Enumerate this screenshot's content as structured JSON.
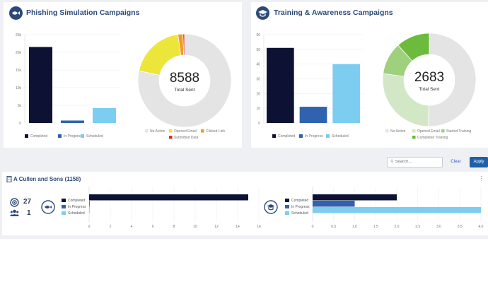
{
  "phishing": {
    "title": "Phishing Simulation Campaigns",
    "bar_legend": [
      "Completed",
      "In Progress",
      "Scheduled"
    ],
    "donut_center": "8588",
    "donut_label": "Total Sent",
    "donut_legend": [
      "No Action",
      "Opened Email",
      "Clicked Link",
      "Submitted Data"
    ]
  },
  "training": {
    "title": "Training & Awareness Campaigns",
    "bar_legend": [
      "Completed",
      "In Progress",
      "Scheduled"
    ],
    "donut_center": "2683",
    "donut_label": "Total Sent",
    "donut_legend": [
      "No Action",
      "Opened Email",
      "Started Training",
      "Completed Training"
    ]
  },
  "toolbar": {
    "search_placeholder": "Search...",
    "clear_label": "Clear",
    "apply_label": "Apply"
  },
  "org": {
    "name": "A Cullen and Sons (1158)",
    "stat_a": "27",
    "stat_b": "1",
    "phish_legend": [
      "Completed",
      "In Progress",
      "Scheduled"
    ],
    "train_legend": [
      "Completed",
      "In Progress",
      "Scheduled"
    ]
  },
  "colors": {
    "completed": "#0d1235",
    "in_progress": "#2f63b0",
    "scheduled": "#7ccdf0",
    "no_action": "#e4e4e4",
    "opened": "#ece53a",
    "clicked": "#f29a26",
    "submitted": "#d6312b",
    "opened_training": "#d2e7c5",
    "started_training": "#9fd07e",
    "completed_training": "#6cbb3c"
  },
  "chart_data": [
    {
      "type": "bar",
      "categories": [
        "Completed",
        "In Progress",
        "Scheduled"
      ],
      "values": [
        21500,
        700,
        4200
      ],
      "ylim": [
        0,
        25000
      ],
      "yticks": [
        "0",
        "5k",
        "10k",
        "15k",
        "20k",
        "25k"
      ],
      "legend": "bottom",
      "grid": true
    },
    {
      "type": "pie",
      "categories": [
        "No Action",
        "Opened Email",
        "Clicked Link",
        "Submitted Data"
      ],
      "values": [
        6730,
        1660,
        150,
        48
      ],
      "center_text": "8588",
      "legend": "bottom"
    },
    {
      "type": "bar",
      "categories": [
        "Completed",
        "In Progress",
        "Scheduled"
      ],
      "values": [
        51,
        11,
        40
      ],
      "ylim": [
        0,
        60
      ],
      "yticks": [
        "0",
        "10",
        "20",
        "30",
        "40",
        "50",
        "60"
      ],
      "legend": "bottom",
      "grid": true
    },
    {
      "type": "pie",
      "categories": [
        "No Action",
        "Opened Email",
        "Started Training",
        "Completed Training"
      ],
      "values": [
        1350,
        720,
        300,
        313
      ],
      "center_text": "2683",
      "legend": "bottom"
    },
    {
      "type": "bar",
      "orientation": "horizontal",
      "categories": [
        "Completed",
        "In Progress",
        "Scheduled"
      ],
      "values": [
        15,
        0,
        0
      ],
      "xlim": [
        0,
        16
      ],
      "xticks": [
        "0",
        "2",
        "4",
        "6",
        "8",
        "10",
        "12",
        "14",
        "16"
      ],
      "legend": "left"
    },
    {
      "type": "bar",
      "orientation": "horizontal",
      "categories": [
        "Completed",
        "In Progress",
        "Scheduled"
      ],
      "values": [
        2,
        1,
        4
      ],
      "xlim": [
        0,
        4
      ],
      "xticks": [
        "0",
        "0.5",
        "1.0",
        "1.5",
        "2.0",
        "2.5",
        "3.0",
        "3.5",
        "4.0"
      ],
      "legend": "left"
    }
  ]
}
